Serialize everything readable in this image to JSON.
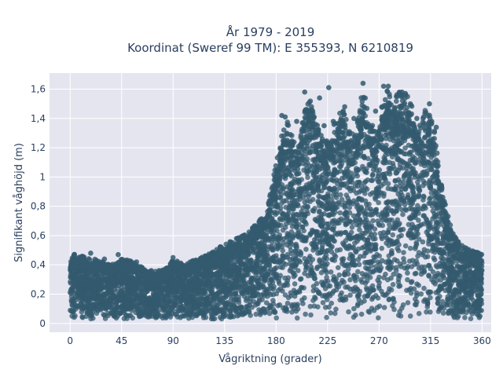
{
  "chart_data": {
    "type": "scatter",
    "title_line1": "År 1979 - 2019",
    "title_line2": "Koordinat (Sweref 99 TM): E 355393, N 6210819",
    "xlabel": "Vågriktning (grader)",
    "ylabel": "Signifikant våghöjd (m)",
    "xlim": [
      -18,
      368
    ],
    "ylim": [
      -0.06,
      1.71
    ],
    "xticks": [
      0,
      45,
      90,
      135,
      180,
      225,
      270,
      315,
      360
    ],
    "xtick_labels": [
      "0",
      "45",
      "90",
      "135",
      "180",
      "225",
      "270",
      "315",
      "360"
    ],
    "yticks": [
      0,
      0.2,
      0.4,
      0.6,
      0.8,
      1.0,
      1.2,
      1.4,
      1.6
    ],
    "ytick_labels": [
      "0",
      "0,2",
      "0,4",
      "0,6",
      "0,8",
      "1",
      "1,2",
      "1,4",
      "1,6"
    ],
    "grid": true,
    "colors": {
      "marker": "#335a6e",
      "plot_bg": "#e5e5f0",
      "grid": "#ffffff",
      "text": "#2a3f5f"
    },
    "envelope_points": [
      {
        "x": 0,
        "y": 0.47
      },
      {
        "x": 5,
        "y": 0.48
      },
      {
        "x": 10,
        "y": 0.47
      },
      {
        "x": 15,
        "y": 0.45
      },
      {
        "x": 25,
        "y": 0.44
      },
      {
        "x": 35,
        "y": 0.4
      },
      {
        "x": 45,
        "y": 0.45
      },
      {
        "x": 55,
        "y": 0.42
      },
      {
        "x": 65,
        "y": 0.38
      },
      {
        "x": 75,
        "y": 0.36
      },
      {
        "x": 85,
        "y": 0.38
      },
      {
        "x": 90,
        "y": 0.44
      },
      {
        "x": 100,
        "y": 0.4
      },
      {
        "x": 110,
        "y": 0.44
      },
      {
        "x": 120,
        "y": 0.47
      },
      {
        "x": 130,
        "y": 0.52
      },
      {
        "x": 140,
        "y": 0.56
      },
      {
        "x": 150,
        "y": 0.6
      },
      {
        "x": 160,
        "y": 0.66
      },
      {
        "x": 170,
        "y": 0.75
      },
      {
        "x": 175,
        "y": 0.9
      },
      {
        "x": 180,
        "y": 1.1
      },
      {
        "x": 185,
        "y": 1.3
      },
      {
        "x": 190,
        "y": 1.38
      },
      {
        "x": 195,
        "y": 1.25
      },
      {
        "x": 200,
        "y": 1.22
      },
      {
        "x": 205,
        "y": 1.46
      },
      {
        "x": 210,
        "y": 1.53
      },
      {
        "x": 215,
        "y": 1.38
      },
      {
        "x": 220,
        "y": 1.3
      },
      {
        "x": 225,
        "y": 1.26
      },
      {
        "x": 230,
        "y": 1.37
      },
      {
        "x": 238,
        "y": 1.48
      },
      {
        "x": 245,
        "y": 1.3
      },
      {
        "x": 250,
        "y": 1.32
      },
      {
        "x": 256,
        "y": 1.64
      },
      {
        "x": 262,
        "y": 1.38
      },
      {
        "x": 268,
        "y": 1.34
      },
      {
        "x": 275,
        "y": 1.62
      },
      {
        "x": 282,
        "y": 1.55
      },
      {
        "x": 288,
        "y": 1.58
      },
      {
        "x": 295,
        "y": 1.56
      },
      {
        "x": 300,
        "y": 1.46
      },
      {
        "x": 306,
        "y": 1.36
      },
      {
        "x": 312,
        "y": 1.5
      },
      {
        "x": 318,
        "y": 1.36
      },
      {
        "x": 322,
        "y": 1.08
      },
      {
        "x": 326,
        "y": 0.88
      },
      {
        "x": 330,
        "y": 0.74
      },
      {
        "x": 335,
        "y": 0.62
      },
      {
        "x": 340,
        "y": 0.55
      },
      {
        "x": 345,
        "y": 0.52
      },
      {
        "x": 350,
        "y": 0.5
      },
      {
        "x": 355,
        "y": 0.49
      },
      {
        "x": 360,
        "y": 0.47
      }
    ],
    "outliers": [
      {
        "x": 256,
        "y": 1.64
      },
      {
        "x": 274,
        "y": 1.62
      },
      {
        "x": 278,
        "y": 1.62
      },
      {
        "x": 226,
        "y": 1.61
      },
      {
        "x": 205,
        "y": 1.58
      },
      {
        "x": 290,
        "y": 1.58
      },
      {
        "x": 293,
        "y": 1.57
      },
      {
        "x": 218,
        "y": 1.54
      },
      {
        "x": 314,
        "y": 1.5
      },
      {
        "x": 240,
        "y": 1.48
      },
      {
        "x": 289,
        "y": 1.47
      },
      {
        "x": 207,
        "y": 1.46
      },
      {
        "x": 212,
        "y": 1.45
      },
      {
        "x": 267,
        "y": 1.45
      },
      {
        "x": 296,
        "y": 1.44
      },
      {
        "x": 185,
        "y": 1.42
      },
      {
        "x": 188,
        "y": 1.41
      },
      {
        "x": 248,
        "y": 1.4
      },
      {
        "x": 303,
        "y": 1.4
      },
      {
        "x": 198,
        "y": 1.38
      },
      {
        "x": 230,
        "y": 1.38
      },
      {
        "x": 316,
        "y": 1.38
      },
      {
        "x": 203,
        "y": 1.37
      },
      {
        "x": 258,
        "y": 1.36
      },
      {
        "x": 222,
        "y": 1.35
      },
      {
        "x": 286,
        "y": 1.35
      },
      {
        "x": 320,
        "y": 1.34
      },
      {
        "x": 234,
        "y": 1.33
      },
      {
        "x": 310,
        "y": 1.33
      },
      {
        "x": 244,
        "y": 1.3
      },
      {
        "x": 262,
        "y": 1.31
      },
      {
        "x": 300,
        "y": 1.31
      },
      {
        "x": 18,
        "y": 0.48
      },
      {
        "x": 30,
        "y": 0.44
      },
      {
        "x": 42,
        "y": 0.47
      },
      {
        "x": 58,
        "y": 0.42
      },
      {
        "x": 90,
        "y": 0.45
      },
      {
        "x": 118,
        "y": 0.46
      },
      {
        "x": 125,
        "y": 0.48
      },
      {
        "x": 357,
        "y": 0.48
      }
    ]
  }
}
